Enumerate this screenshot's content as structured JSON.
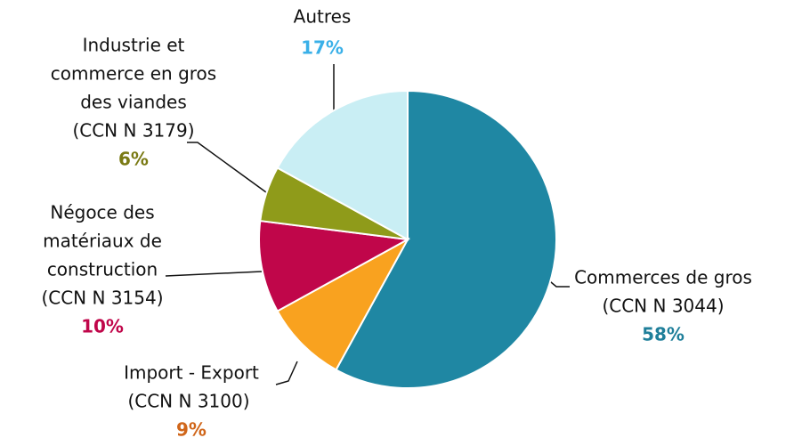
{
  "chart_data": {
    "type": "pie",
    "categories": [
      [
        "Commerces de gros",
        "(CCN N  3044)"
      ],
      [
        "Import - Export",
        "(CCN N  3100)"
      ],
      [
        "Négoce des",
        "matériaux de",
        "construction",
        "(CCN N  3154)"
      ],
      [
        "Industrie et",
        "commerce en gros",
        "des viandes",
        "(CCN N  3179)"
      ],
      [
        "Autres"
      ]
    ],
    "values": [
      58,
      9,
      10,
      6,
      17
    ],
    "value_labels": [
      "58%",
      "9%",
      "10%",
      "6%",
      "17%"
    ],
    "colors": [
      "#1f87a3",
      "#f9a21f",
      "#c0064a",
      "#8f9b1a",
      "#c9eef4"
    ],
    "label_colors": [
      "#1f7f9a",
      "#d0661a",
      "#c0064a",
      "#7a7a14",
      "#3ab0e8"
    ]
  }
}
